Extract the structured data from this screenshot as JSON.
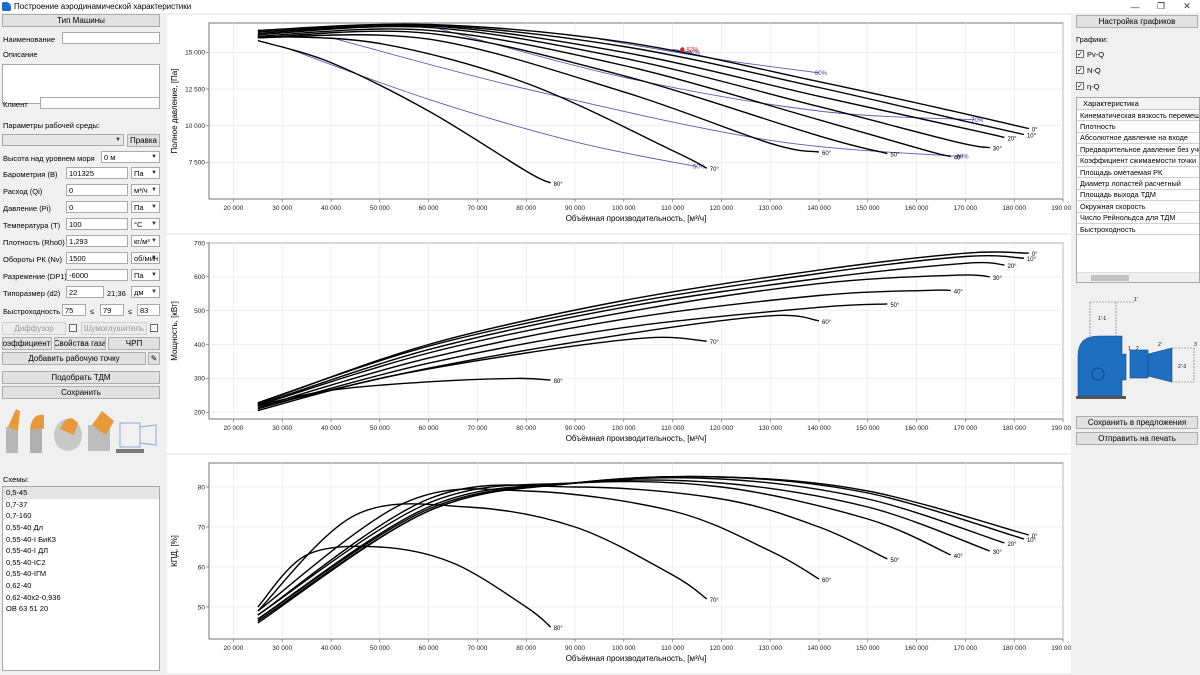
{
  "window": {
    "title": "Построение аэродинамической характеристики"
  },
  "left": {
    "machine_type_btn": "Тип Машины",
    "name_label": "Наименование",
    "desc_label": "Описание",
    "client_label": "Клиент",
    "env_label": "Параметры рабочей среды:",
    "pravka_btn": "Правка",
    "params": [
      {
        "label": "Высота над уровнем моря",
        "value": "0 м",
        "unit": ""
      },
      {
        "label": "Барометрия (B)",
        "value": "101325",
        "unit": "Па"
      },
      {
        "label": "Расход (Qi)",
        "value": "0",
        "unit": "м³/ч"
      },
      {
        "label": "Давление (Pi)",
        "value": "0",
        "unit": "Па"
      },
      {
        "label": "Температура (T)",
        "value": "100",
        "unit": "°С"
      },
      {
        "label": "Плотность (Rho0)",
        "value": "1,293",
        "unit": "кг/м³"
      },
      {
        "label": "Обороты РК (Nv)",
        "value": "1500",
        "unit": "об/мин"
      },
      {
        "label": "Разрежение (DP1)",
        "value": "-6000",
        "unit": "Па"
      }
    ],
    "size_label": "Типоразмер (d2)",
    "size_value": "22",
    "size_range": "21;36",
    "size_unit": "дм",
    "speed_label": "Быстроходность",
    "speed_min": "75",
    "speed_le1": "≤",
    "speed_val": "79",
    "speed_le2": "≤",
    "speed_max": "83",
    "diffuser_btn": "Диффузор",
    "silencer_btn": "Шумоглушитель",
    "coef_btn": "Коэффициенты",
    "gas_btn": "Свойства газа",
    "vfd_btn": "ЧРП",
    "add_point_btn": "Добавить рабочую точку",
    "pick_btn": "Подобрать ТДМ",
    "save_btn": "Сохранить",
    "schemes_label": "Схемы:",
    "schemes": [
      "0,5-45",
      "0,7-37",
      "0,7-160",
      "0,55-40 Дл",
      "0,55-40-I БиКЗ",
      "0,55-40-I ДЛ",
      "0,55-40-IC2",
      "0,55-40-IГМ",
      "0,62-40",
      "0,62-40х2-0,936",
      "ОВ 63 51 20"
    ]
  },
  "right": {
    "settings_btn": "Настройка графиков",
    "graphs_label": "Графики:",
    "graphs": [
      {
        "label": "Pv-Q",
        "checked": "✓"
      },
      {
        "label": "N-Q",
        "checked": "✓"
      },
      {
        "label": "η-Q",
        "checked": "✓"
      }
    ],
    "table_header": "Характеристика",
    "properties": [
      "Кинематическая вязкость перемещаемой среды",
      "Плотность",
      "Абсолютное давление на входе",
      "Предварительное давление без учета",
      "Коэффициент сжимаемости точки",
      "Площадь ометаемая РК",
      "Диаметр лопастей расчетный",
      "Площадь выхода ТДМ",
      "Окружная скорость",
      "Число Рейнольдса для ТДМ",
      "Быстроходность"
    ],
    "diagram_labels": [
      "1'",
      "1'-1",
      "1",
      "2",
      "2'",
      "2'-3",
      "3"
    ],
    "save_offer_btn": "Сохранить в предложения",
    "print_btn": "Отправить на печать"
  },
  "chart_data": [
    {
      "type": "line",
      "title": "",
      "xlabel": "Объёмная производительность, [м³/ч]",
      "ylabel": "Полное давление, [Па]",
      "xlim": [
        15000,
        190000
      ],
      "ylim": [
        5000,
        17000
      ],
      "xticks": [
        20000,
        30000,
        40000,
        50000,
        60000,
        70000,
        80000,
        90000,
        100000,
        110000,
        120000,
        130000,
        140000,
        150000,
        160000,
        170000,
        180000,
        190000
      ],
      "yticks": [
        7500,
        10000,
        12500,
        15000
      ],
      "series": [
        {
          "name": "0°",
          "x": [
            25000,
            60000,
            100000,
            140000,
            170000,
            183000
          ],
          "y": [
            16500,
            16900,
            15700,
            13000,
            10800,
            9800
          ]
        },
        {
          "name": "10°",
          "x": [
            25000,
            60000,
            100000,
            140000,
            170000,
            182000
          ],
          "y": [
            16400,
            16850,
            15400,
            12600,
            10300,
            9400
          ]
        },
        {
          "name": "20°",
          "x": [
            25000,
            60000,
            100000,
            140000,
            170000,
            178000
          ],
          "y": [
            16300,
            16800,
            15000,
            12000,
            9800,
            9200
          ]
        },
        {
          "name": "30°",
          "x": [
            25000,
            60000,
            100000,
            140000,
            168000,
            175000
          ],
          "y": [
            16200,
            16700,
            14600,
            11300,
            8900,
            8500
          ]
        },
        {
          "name": "40°",
          "x": [
            25000,
            60000,
            100000,
            140000,
            162000,
            167000
          ],
          "y": [
            16100,
            16500,
            14100,
            10400,
            8300,
            7900
          ]
        },
        {
          "name": "50°",
          "x": [
            25000,
            60000,
            100000,
            140000,
            154000
          ],
          "y": [
            16000,
            16300,
            13400,
            9300,
            8100
          ]
        },
        {
          "name": "60°",
          "x": [
            25000,
            60000,
            100000,
            130000,
            140000
          ],
          "y": [
            16000,
            15900,
            12300,
            8800,
            8200
          ]
        },
        {
          "name": "70°",
          "x": [
            25000,
            50000,
            80000,
            110000,
            117000
          ],
          "y": [
            16100,
            15600,
            12900,
            8300,
            7100
          ]
        },
        {
          "name": "80°",
          "x": [
            25000,
            40000,
            60000,
            80000,
            85000
          ],
          "y": [
            15800,
            14300,
            11000,
            6900,
            6100
          ]
        }
      ],
      "efficiency_lines": [
        {
          "name": "50%",
          "x": [
            30000,
            60000,
            90000,
            115000
          ],
          "y": [
            15400,
            11800,
            8900,
            7200
          ]
        },
        {
          "name": "60%",
          "x": [
            40000,
            80000,
            130000,
            169000
          ],
          "y": [
            16000,
            12500,
            9000,
            7900
          ]
        },
        {
          "name": "70%",
          "x": [
            60000,
            100000,
            140000,
            172000
          ],
          "y": [
            16800,
            13300,
            11000,
            10400
          ]
        },
        {
          "name": "80%",
          "x": [
            95000,
            120000,
            140000
          ],
          "y": [
            15900,
            14500,
            13600
          ]
        },
        {
          "name": "82%",
          "x": [
            110000,
            114000
          ],
          "y": [
            15200,
            15000
          ]
        }
      ],
      "marker": {
        "x": 112000,
        "y": 15200,
        "label": "82%"
      }
    },
    {
      "type": "line",
      "title": "",
      "xlabel": "Объёмная производительность, [м³/ч]",
      "ylabel": "Мощность, [кВт]",
      "xlim": [
        15000,
        190000
      ],
      "ylim": [
        180,
        700
      ],
      "xticks": [
        20000,
        30000,
        40000,
        50000,
        60000,
        70000,
        80000,
        90000,
        100000,
        110000,
        120000,
        130000,
        140000,
        150000,
        160000,
        170000,
        180000,
        190000
      ],
      "yticks": [
        200,
        300,
        400,
        500,
        600,
        700
      ],
      "series": [
        {
          "name": "0°",
          "x": [
            25000,
            60000,
            100000,
            140000,
            170000,
            183000
          ],
          "y": [
            225,
            400,
            530,
            620,
            670,
            670
          ]
        },
        {
          "name": "10°",
          "x": [
            25000,
            60000,
            100000,
            140000,
            170000,
            182000
          ],
          "y": [
            228,
            395,
            520,
            610,
            660,
            655
          ]
        },
        {
          "name": "20°",
          "x": [
            25000,
            60000,
            100000,
            140000,
            170000,
            178000
          ],
          "y": [
            222,
            385,
            510,
            595,
            640,
            635
          ]
        },
        {
          "name": "30°",
          "x": [
            25000,
            60000,
            100000,
            140000,
            168000,
            175000
          ],
          "y": [
            220,
            375,
            495,
            580,
            605,
            600
          ]
        },
        {
          "name": "40°",
          "x": [
            25000,
            60000,
            100000,
            140000,
            162000,
            167000
          ],
          "y": [
            215,
            360,
            475,
            545,
            560,
            560
          ]
        },
        {
          "name": "50°",
          "x": [
            25000,
            60000,
            100000,
            140000,
            154000
          ],
          "y": [
            210,
            345,
            450,
            510,
            520
          ]
        },
        {
          "name": "60°",
          "x": [
            25000,
            60000,
            100000,
            130000,
            140000
          ],
          "y": [
            215,
            330,
            430,
            485,
            470
          ]
        },
        {
          "name": "70°",
          "x": [
            25000,
            50000,
            80000,
            105000,
            117000
          ],
          "y": [
            205,
            300,
            375,
            420,
            410
          ]
        },
        {
          "name": "80°",
          "x": [
            25000,
            40000,
            60000,
            78000,
            85000
          ],
          "y": [
            220,
            265,
            290,
            300,
            295
          ]
        }
      ]
    },
    {
      "type": "line",
      "title": "",
      "xlabel": "Объёмная производительность, [м³/ч]",
      "ylabel": "КПД, [%]",
      "xlim": [
        15000,
        190000
      ],
      "ylim": [
        42,
        86
      ],
      "xticks": [
        20000,
        30000,
        40000,
        50000,
        60000,
        70000,
        80000,
        90000,
        100000,
        110000,
        120000,
        130000,
        140000,
        150000,
        160000,
        170000,
        180000,
        190000
      ],
      "yticks": [
        50,
        60,
        70,
        80
      ],
      "series": [
        {
          "name": "0°",
          "x": [
            25000,
            60000,
            90000,
            120000,
            150000,
            183000
          ],
          "y": [
            46,
            74,
            81,
            82.5,
            79,
            68
          ]
        },
        {
          "name": "10°",
          "x": [
            25000,
            60000,
            90000,
            120000,
            150000,
            182000
          ],
          "y": [
            46.5,
            74,
            81,
            82.5,
            78.5,
            67
          ]
        },
        {
          "name": "20°",
          "x": [
            25000,
            60000,
            90000,
            120000,
            150000,
            178000
          ],
          "y": [
            47,
            74.5,
            81,
            82,
            77,
            66
          ]
        },
        {
          "name": "30°",
          "x": [
            25000,
            60000,
            90000,
            120000,
            150000,
            175000
          ],
          "y": [
            47,
            75,
            81,
            81,
            75,
            64
          ]
        },
        {
          "name": "40°",
          "x": [
            25000,
            60000,
            90000,
            120000,
            150000,
            167000
          ],
          "y": [
            48,
            76,
            81,
            80,
            72,
            63
          ]
        },
        {
          "name": "50°",
          "x": [
            25000,
            60000,
            90000,
            120000,
            140000,
            154000
          ],
          "y": [
            48,
            77,
            80,
            77,
            70,
            62
          ]
        },
        {
          "name": "60°",
          "x": [
            25000,
            55000,
            80000,
            110000,
            130000,
            140000
          ],
          "y": [
            49,
            76,
            79,
            74,
            64,
            57
          ]
        },
        {
          "name": "70°",
          "x": [
            25000,
            45000,
            68000,
            90000,
            110000,
            117000
          ],
          "y": [
            49,
            73,
            75,
            70,
            58,
            52
          ]
        },
        {
          "name": "80°",
          "x": [
            25000,
            35000,
            50000,
            65000,
            80000,
            85000
          ],
          "y": [
            50,
            63,
            65,
            61,
            50,
            45
          ]
        }
      ]
    }
  ]
}
